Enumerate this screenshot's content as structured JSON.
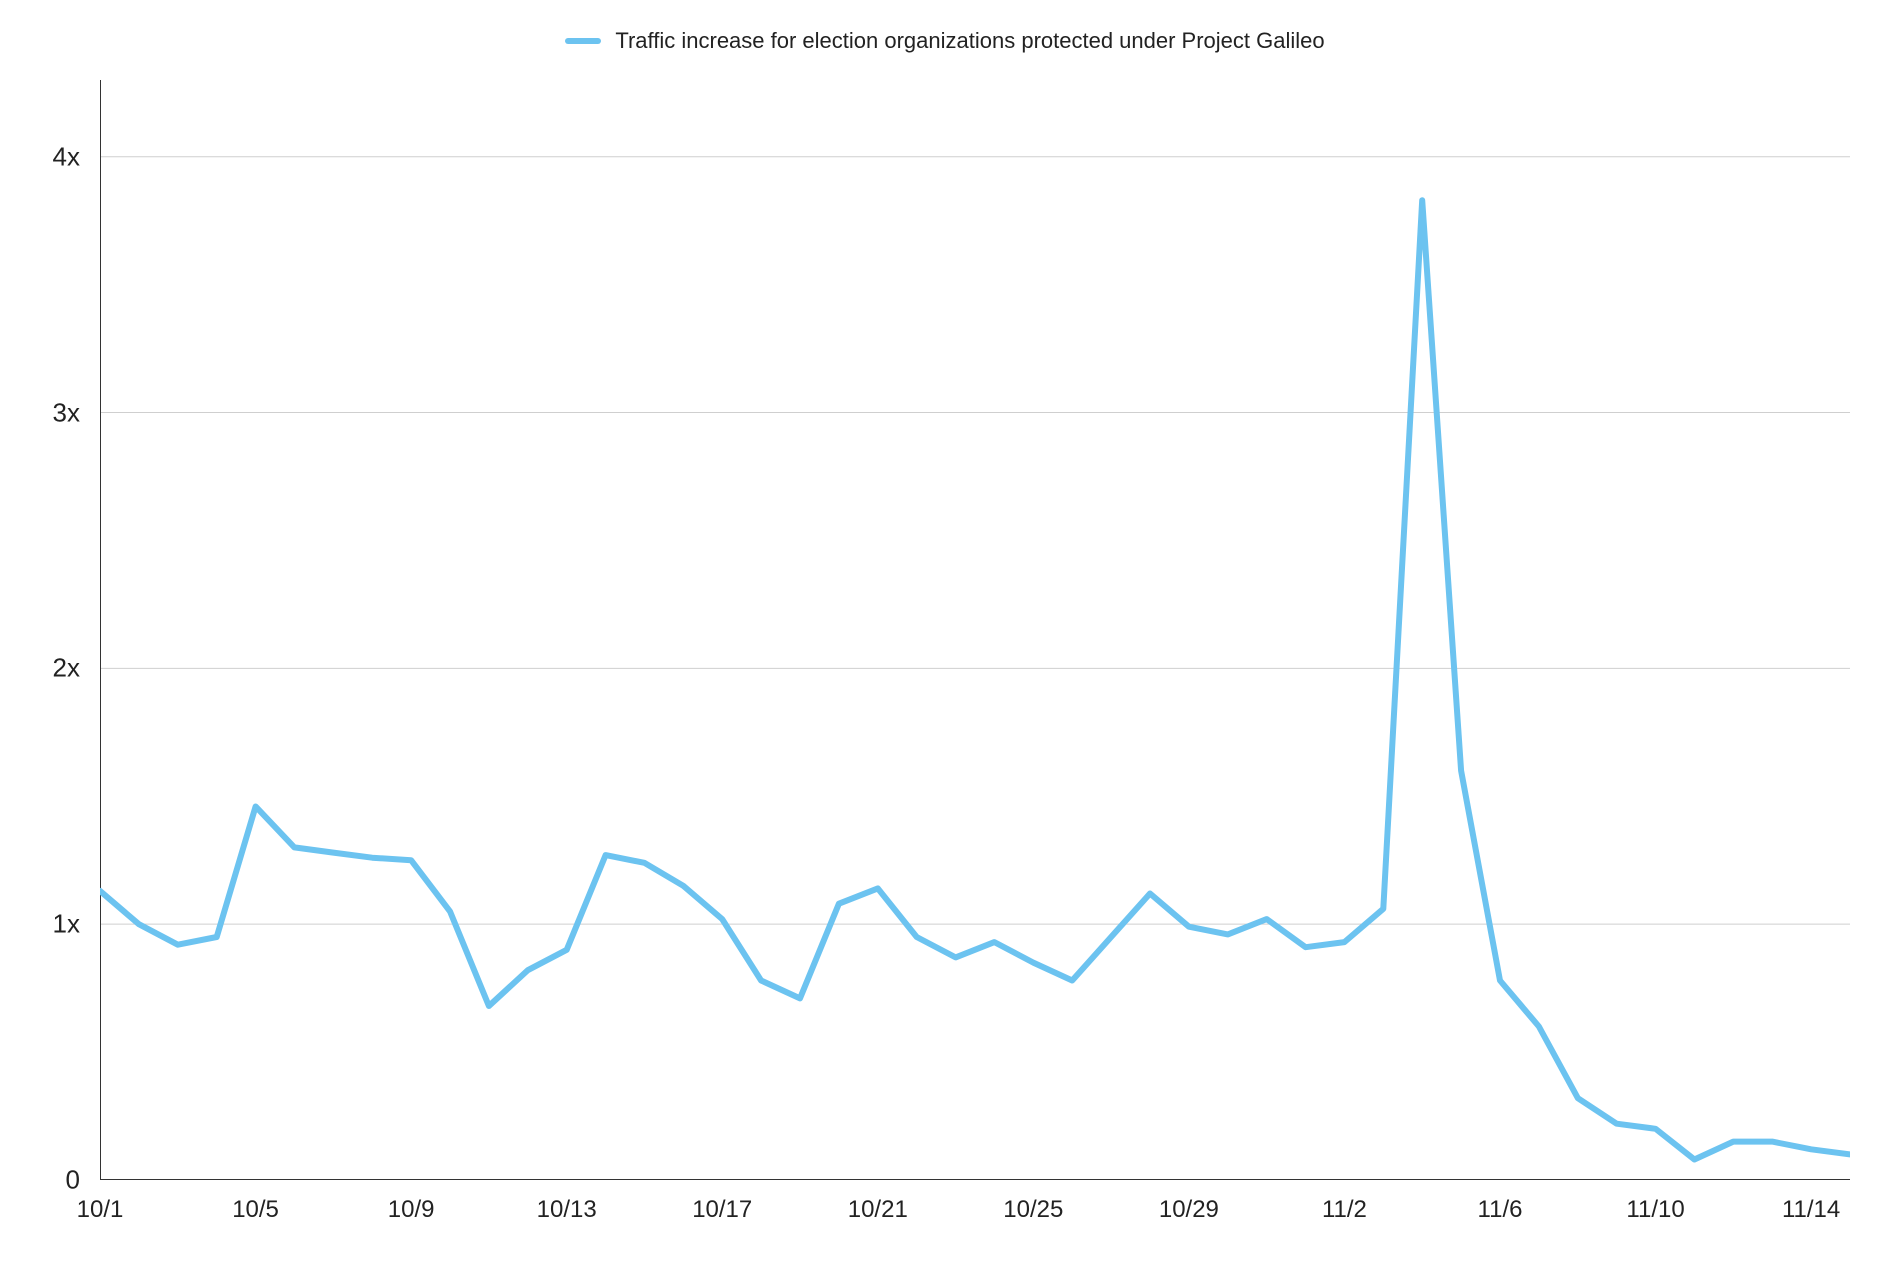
{
  "chart": {
    "type": "line",
    "legend_label": "Traffic increase for election organizations protected under Project Galileo",
    "line_color": "#6cc3f0",
    "line_width": 6,
    "background_color": "#ffffff",
    "grid_color": "#cfcfcf",
    "axis_color": "#333333",
    "label_color": "#222222",
    "y": {
      "min": 0,
      "max": 4.3,
      "ticks": [
        0,
        1,
        2,
        3,
        4
      ],
      "tick_labels": [
        "0",
        "1x",
        "2x",
        "3x",
        "4x"
      ]
    },
    "x": {
      "min": 0,
      "max": 45,
      "ticks": [
        0,
        4,
        8,
        12,
        16,
        20,
        24,
        28,
        32,
        36,
        40,
        44
      ],
      "tick_labels": [
        "10/1",
        "10/5",
        "10/9",
        "10/13",
        "10/17",
        "10/21",
        "10/25",
        "10/29",
        "11/2",
        "11/6",
        "11/10",
        "11/14"
      ]
    },
    "data": {
      "x": [
        0,
        1,
        2,
        3,
        4,
        5,
        6,
        7,
        8,
        9,
        10,
        11,
        12,
        13,
        14,
        15,
        16,
        17,
        18,
        19,
        20,
        21,
        22,
        23,
        24,
        25,
        26,
        27,
        28,
        29,
        30,
        31,
        32,
        33,
        34,
        35,
        36,
        37,
        38,
        39,
        40,
        41,
        42,
        43,
        44,
        45
      ],
      "y": [
        1.13,
        1.0,
        0.92,
        0.95,
        1.46,
        1.3,
        1.28,
        1.26,
        1.25,
        1.05,
        0.68,
        0.82,
        0.9,
        1.27,
        1.24,
        1.15,
        1.02,
        0.78,
        0.71,
        1.08,
        1.14,
        0.95,
        0.87,
        0.93,
        0.85,
        0.78,
        0.95,
        1.12,
        0.99,
        0.96,
        1.02,
        0.91,
        0.93,
        1.06,
        3.83,
        1.6,
        0.78,
        0.6,
        0.32,
        0.22,
        0.2,
        0.08,
        0.15,
        0.15,
        0.12,
        0.1
      ]
    },
    "label_fontsize": 26,
    "legend_fontsize": 22
  }
}
